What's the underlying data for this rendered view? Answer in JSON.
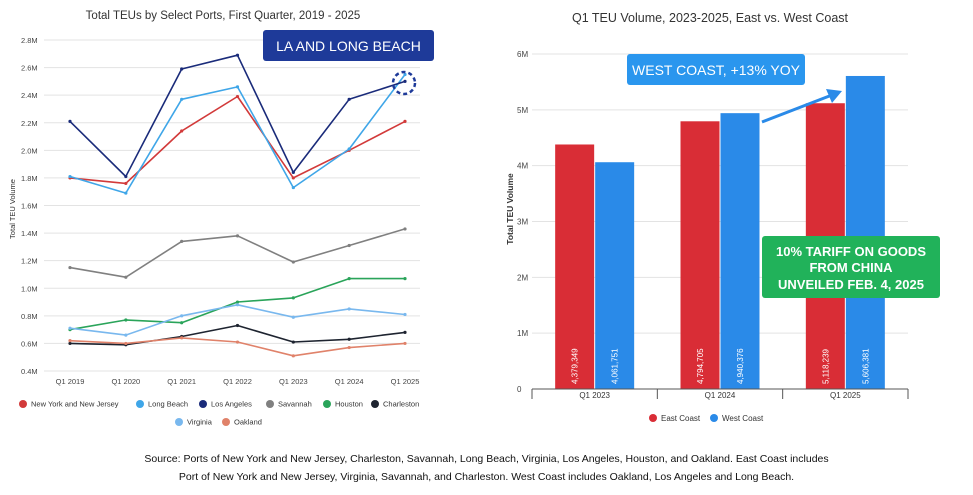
{
  "colors": {
    "ny_nj": "#d23a3a",
    "long_beach": "#3fa6e8",
    "los_angeles": "#1a2b7a",
    "savannah": "#808080",
    "houston": "#2aa45a",
    "charleston": "#1e2430",
    "virginia": "#79b8ee",
    "oakland": "#e0826a",
    "east_coast": "#d92d36",
    "west_coast": "#2a8ae8",
    "callout_navy": "#1e3a99",
    "callout_blue": "#2a96ee",
    "callout_green": "#21b25a"
  },
  "chart_data": [
    {
      "type": "line",
      "title": "Total TEUs by Select Ports, First Quarter, 2019 - 2025",
      "xlabel": "",
      "ylabel": "Total TEU Volume",
      "x": [
        "Q1 2019",
        "Q1 2020",
        "Q1 2021",
        "Q1 2022",
        "Q1 2023",
        "Q1 2024",
        "Q1 2025"
      ],
      "ylim": [
        400000,
        2800000
      ],
      "yticks": [
        400000,
        600000,
        800000,
        1000000,
        1200000,
        1400000,
        1600000,
        1800000,
        2000000,
        2200000,
        2400000,
        2600000,
        2800000
      ],
      "ytick_labels": [
        "0.4M",
        "0.6M",
        "0.8M",
        "1.0M",
        "1.2M",
        "1.4M",
        "1.6M",
        "1.8M",
        "2.0M",
        "2.2M",
        "2.4M",
        "2.6M",
        "2.8M"
      ],
      "grid": true,
      "legend_position": "bottom",
      "series": [
        {
          "name": "New York and New Jersey",
          "key": "ny_nj",
          "values": [
            1800000,
            1760000,
            2140000,
            2390000,
            1800000,
            2000000,
            2210000
          ]
        },
        {
          "name": "Long Beach",
          "key": "long_beach",
          "values": [
            1810000,
            1690000,
            2370000,
            2460000,
            1730000,
            2010000,
            2550000
          ]
        },
        {
          "name": "Los Angeles",
          "key": "los_angeles",
          "values": [
            2210000,
            1810000,
            2590000,
            2690000,
            1840000,
            2370000,
            2500000
          ]
        },
        {
          "name": "Savannah",
          "key": "savannah",
          "values": [
            1150000,
            1080000,
            1340000,
            1380000,
            1190000,
            1310000,
            1430000
          ]
        },
        {
          "name": "Houston",
          "key": "houston",
          "values": [
            700000,
            770000,
            750000,
            900000,
            930000,
            1070000,
            1070000
          ]
        },
        {
          "name": "Charleston",
          "key": "charleston",
          "values": [
            600000,
            590000,
            650000,
            730000,
            610000,
            630000,
            680000
          ]
        },
        {
          "name": "Virginia",
          "key": "virginia",
          "values": [
            710000,
            660000,
            800000,
            880000,
            790000,
            850000,
            810000
          ]
        },
        {
          "name": "Oakland",
          "key": "oakland",
          "values": [
            620000,
            600000,
            640000,
            610000,
            510000,
            570000,
            600000
          ]
        }
      ],
      "annotation": "LA AND LONG BEACH"
    },
    {
      "type": "bar",
      "title": "Q1 TEU Volume, 2023-2025, East vs. West Coast",
      "xlabel": "",
      "ylabel": "Total TEU Volume",
      "categories": [
        "Q1 2023",
        "Q1 2024",
        "Q1 2025"
      ],
      "ylim": [
        0,
        6000000
      ],
      "yticks": [
        0,
        1000000,
        2000000,
        3000000,
        4000000,
        5000000,
        6000000
      ],
      "ytick_labels": [
        "0",
        "1M",
        "2M",
        "3M",
        "4M",
        "5M",
        "6M"
      ],
      "grid": true,
      "legend_position": "bottom",
      "series": [
        {
          "name": "East Coast",
          "key": "east_coast",
          "values": [
            4379349,
            4794705,
            5118239
          ],
          "labels": [
            "4,379,349",
            "4,794,705",
            "5,118,239"
          ]
        },
        {
          "name": "West Coast",
          "key": "west_coast",
          "values": [
            4061751,
            4940376,
            5606381
          ],
          "labels": [
            "4,061,751",
            "4,940,376",
            "5,606,381"
          ]
        }
      ],
      "annotations": [
        "WEST COAST, +13% YOY",
        "10% TARIFF ON GOODS",
        "FROM CHINA",
        "UNVEILED FEB. 4, 2025"
      ]
    }
  ],
  "source": {
    "line1": "Source: Ports of New York and New Jersey, Charleston, Savannah, Long Beach, Virginia, Los Angeles, Houston, and Oakland. East Coast includes",
    "line2": "Port of New York and New Jersey, Virginia, Savannah, and Charleston. West Coast includes Oakland, Los Angeles and Long Beach."
  }
}
